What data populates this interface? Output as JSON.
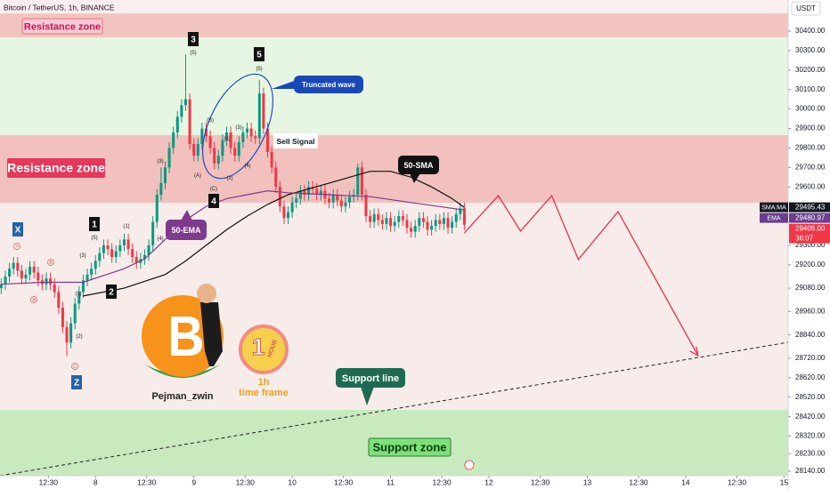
{
  "chart_data": {
    "type": "candlestick",
    "title": "Bitcoin / TetherUS, 1h, BINANCE",
    "currency": "USDT",
    "open": [
      29080,
      29100,
      29140,
      29180,
      29210,
      29170,
      29130,
      29150,
      29190,
      29160,
      29120,
      29100,
      29130,
      29100,
      29060,
      28980,
      28880,
      28800,
      28900,
      29000,
      29060,
      29120,
      29150,
      29180,
      29220,
      29260,
      29300,
      29280,
      29240,
      29270,
      29300,
      29330,
      29280,
      29240,
      29210,
      29230,
      29250,
      29300,
      29420,
      29560,
      29620,
      29700,
      29800,
      29880,
      29960,
      30020,
      30050,
      29820,
      29760,
      29820,
      29900,
      29860,
      29800,
      29720,
      29760,
      29840,
      29880,
      29800,
      29760,
      29830,
      29880,
      29900,
      29860,
      29850,
      30080,
      29900,
      29780,
      29700,
      29600,
      29500,
      29440,
      29470,
      29520,
      29540,
      29580,
      29560,
      29600,
      29590,
      29560,
      29580,
      29540,
      29520,
      29560,
      29530,
      29500,
      29520,
      29550,
      29560,
      29700,
      29560,
      29450,
      29420,
      29460,
      29430,
      29410,
      29440,
      29400,
      29420,
      29450,
      29430,
      29390,
      29370,
      29400,
      29440,
      29420,
      29380,
      29400,
      29430,
      29410,
      29440,
      29390,
      29420,
      29460,
      29490
    ],
    "high": [
      29130,
      29170,
      29210,
      29240,
      29240,
      29200,
      29180,
      29220,
      29220,
      29190,
      29150,
      29160,
      29160,
      29130,
      29090,
      29010,
      28910,
      28930,
      29030,
      29090,
      29150,
      29180,
      29210,
      29250,
      29290,
      29330,
      29330,
      29310,
      29300,
      29330,
      29360,
      29360,
      29310,
      29270,
      29260,
      29280,
      29330,
      29450,
      29590,
      29700,
      29730,
      29830,
      29910,
      29990,
      30050,
      30280,
      30080,
      29850,
      29850,
      29930,
      29930,
      29890,
      29830,
      29790,
      29870,
      29910,
      29910,
      29830,
      29860,
      29910,
      29930,
      29930,
      29890,
      30150,
      30110,
      29930,
      29810,
      29730,
      29630,
      29530,
      29500,
      29550,
      29570,
      29610,
      29610,
      29630,
      29630,
      29620,
      29610,
      29610,
      29570,
      29590,
      29590,
      29560,
      29550,
      29580,
      29590,
      29720,
      29730,
      29590,
      29480,
      29490,
      29490,
      29460,
      29470,
      29470,
      29450,
      29480,
      29480,
      29460,
      29420,
      29430,
      29470,
      29470,
      29450,
      29430,
      29460,
      29460,
      29470,
      29470,
      29450,
      29490,
      29520,
      29520
    ],
    "low": [
      29050,
      29070,
      29110,
      29150,
      29140,
      29100,
      29100,
      29120,
      29130,
      29090,
      29070,
      29070,
      29070,
      29030,
      28950,
      28850,
      28730,
      28770,
      28870,
      28970,
      29030,
      29090,
      29120,
      29150,
      29190,
      29230,
      29250,
      29210,
      29210,
      29240,
      29270,
      29250,
      29210,
      29180,
      29180,
      29200,
      29220,
      29270,
      29390,
      29530,
      29590,
      29670,
      29770,
      29850,
      29930,
      29990,
      29790,
      29730,
      29730,
      29790,
      29830,
      29770,
      29690,
      29690,
      29730,
      29810,
      29770,
      29730,
      29730,
      29800,
      29850,
      29830,
      29820,
      29820,
      29870,
      29750,
      29670,
      29570,
      29470,
      29410,
      29410,
      29440,
      29490,
      29510,
      29530,
      29530,
      29560,
      29530,
      29530,
      29510,
      29490,
      29490,
      29500,
      29470,
      29470,
      29490,
      29520,
      29530,
      29530,
      29420,
      29390,
      29390,
      29400,
      29380,
      29380,
      29370,
      29370,
      29390,
      29400,
      29360,
      29340,
      29340,
      29370,
      29390,
      29350,
      29350,
      29370,
      29380,
      29380,
      29360,
      29360,
      29390,
      29430,
      29380
    ],
    "close": [
      29100,
      29140,
      29180,
      29210,
      29170,
      29130,
      29150,
      29190,
      29160,
      29120,
      29100,
      29130,
      29100,
      29060,
      28980,
      28880,
      28800,
      28900,
      29000,
      29060,
      29120,
      29150,
      29180,
      29220,
      29260,
      29300,
      29280,
      29240,
      29270,
      29300,
      29330,
      29280,
      29240,
      29210,
      29230,
      29250,
      29300,
      29420,
      29560,
      29620,
      29700,
      29800,
      29880,
      29960,
      30020,
      30050,
      29820,
      29760,
      29820,
      29900,
      29860,
      29800,
      29720,
      29760,
      29840,
      29880,
      29800,
      29760,
      29830,
      29880,
      29900,
      29860,
      29850,
      30080,
      29900,
      29780,
      29700,
      29600,
      29500,
      29440,
      29470,
      29520,
      29540,
      29580,
      29560,
      29600,
      29590,
      29560,
      29580,
      29540,
      29520,
      29560,
      29530,
      29500,
      29520,
      29550,
      29560,
      29700,
      29560,
      29450,
      29420,
      29460,
      29430,
      29410,
      29440,
      29400,
      29420,
      29450,
      29430,
      29390,
      29370,
      29400,
      29440,
      29420,
      29380,
      29400,
      29430,
      29410,
      29440,
      29390,
      29420,
      29460,
      29490,
      29406
    ],
    "up_color": "#089981",
    "down_color": "#f23645",
    "series": [
      {
        "name": "50-SMA",
        "color": "#111111",
        "x": [
          20,
          30,
          40,
          45,
          50,
          55,
          60,
          65,
          70,
          75,
          80,
          85,
          90,
          95,
          100,
          105,
          110,
          113
        ],
        "values": [
          29040,
          29080,
          29150,
          29220,
          29300,
          29380,
          29450,
          29510,
          29560,
          29590,
          29620,
          29650,
          29680,
          29680,
          29650,
          29600,
          29540,
          29495
        ]
      },
      {
        "name": "50-EMA",
        "color": "#7e3a8e",
        "x": [
          0,
          10,
          20,
          30,
          35,
          40,
          45,
          50,
          55,
          60,
          65,
          70,
          80,
          90,
          100,
          110,
          113
        ],
        "values": [
          29100,
          29110,
          29110,
          29180,
          29230,
          29330,
          29430,
          29500,
          29540,
          29560,
          29580,
          29570,
          29560,
          29550,
          29520,
          29490,
          29481
        ]
      }
    ],
    "projection": {
      "color": "#e8314f",
      "x": [
        113,
        121.3,
        126.7,
        134.3,
        140.8,
        150.5,
        170
      ],
      "values": [
        29364,
        29555,
        29373,
        29555,
        29227,
        29473,
        28734
      ]
    },
    "support_line": {
      "label": "Support line",
      "x": [
        -0.3,
        192
      ],
      "values": [
        28117,
        28802
      ]
    },
    "zones": [
      {
        "label": "Resistance zone",
        "range": [
          30368,
          30491
        ],
        "color": "#f2c4c0"
      },
      {
        "label": "Resistance zone",
        "range": [
          29519,
          29866
        ],
        "color": "#f2c1bd"
      },
      {
        "label": "Support zone",
        "range": [
          28117,
          28455
        ],
        "color": "#c9e9bf"
      }
    ],
    "price_tags": [
      {
        "name": "SMA:MA",
        "value": 29495.43,
        "label": "29495.43",
        "color": "#131722"
      },
      {
        "name": "EMA",
        "value": 29480.97,
        "label": "29480.97",
        "color": "#6a3d8f"
      },
      {
        "value": 29406,
        "label": "29406.00",
        "countdown": "36:07",
        "color": "#f23645"
      }
    ],
    "ylim": [
      28117,
      30560
    ],
    "yticks": [
      {
        "value": 30400,
        "label": "30400.00"
      },
      {
        "value": 30300,
        "label": "30300.00"
      },
      {
        "value": 30200,
        "label": "30200.00"
      },
      {
        "value": 30100,
        "label": "30100.00"
      },
      {
        "value": 30000,
        "label": "30000.00"
      },
      {
        "value": 29900,
        "label": "29900.00"
      },
      {
        "value": 29800,
        "label": "29800.00"
      },
      {
        "value": 29700,
        "label": "29700.00"
      },
      {
        "value": 29600,
        "label": "29600.00"
      },
      {
        "value": 29300,
        "label": "29300.00"
      },
      {
        "value": 29200,
        "label": "29200.00"
      },
      {
        "value": 29080,
        "label": "29080.00"
      },
      {
        "value": 28960,
        "label": "28960.00"
      },
      {
        "value": 28840,
        "label": "28840.00"
      },
      {
        "value": 28720,
        "label": "28720.00"
      },
      {
        "value": 28620,
        "label": "28620.00"
      },
      {
        "value": 28520,
        "label": "28520.00"
      },
      {
        "value": 28420,
        "label": "28420.00"
      },
      {
        "value": 28320,
        "label": "28320.00"
      },
      {
        "value": 28230,
        "label": "28230.00"
      },
      {
        "value": 28140,
        "label": "28140.00"
      }
    ],
    "xlim": [
      -0.3,
      192
    ],
    "xticks": [
      {
        "value": 11.5,
        "label": "12:30"
      },
      {
        "value": 23,
        "label": "8"
      },
      {
        "value": 35.5,
        "label": "12:30"
      },
      {
        "value": 47,
        "label": "9"
      },
      {
        "value": 59.5,
        "label": "12:30"
      },
      {
        "value": 71,
        "label": "10"
      },
      {
        "value": 83.5,
        "label": "12:30"
      },
      {
        "value": 95,
        "label": "11"
      },
      {
        "value": 107.5,
        "label": "12:30"
      },
      {
        "value": 119,
        "label": "12"
      },
      {
        "value": 131.5,
        "label": "12:30"
      },
      {
        "value": 143,
        "label": "13"
      },
      {
        "value": 155.5,
        "label": "12:30"
      },
      {
        "value": 167,
        "label": "14"
      },
      {
        "value": 179.5,
        "label": "12:30"
      },
      {
        "value": 191,
        "label": "15"
      }
    ],
    "annotations": {
      "truncated": "Truncated wave",
      "sell": "Sell Signal",
      "author": "Pejman_zwin",
      "badge": "HOUR",
      "badge_num": "1",
      "timeframe": "1h",
      "timeframe_text": "time frame"
    },
    "wave_labels": [
      "3",
      "5",
      "1",
      "2",
      "4",
      "X",
      "Z"
    ],
    "sub_labels": [
      "(5)",
      "(5)",
      "(5)",
      "(4)",
      "(3)",
      "(3)",
      "(2)",
      "(1)",
      "(4)",
      "(A)",
      "(C)",
      "(B)",
      "(1)",
      "(3)",
      "(2)",
      "(1)",
      "A",
      "B",
      "C",
      "Y"
    ]
  }
}
